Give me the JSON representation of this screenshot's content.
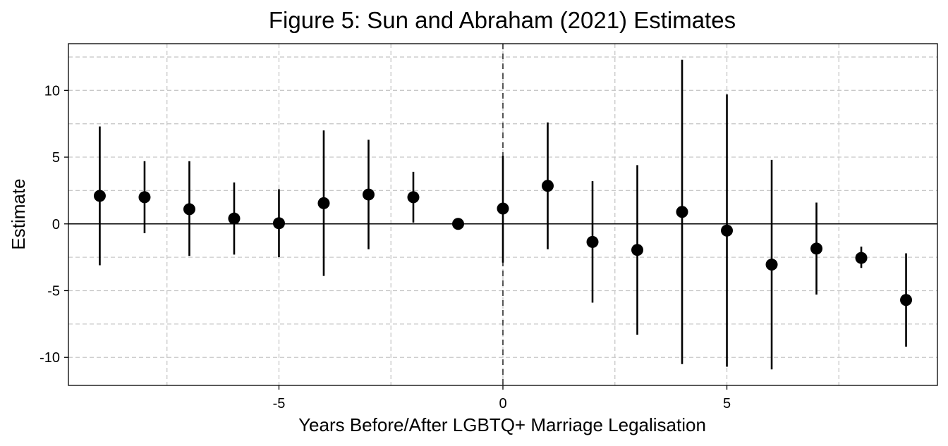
{
  "chart_data": {
    "type": "scatter",
    "title": "Figure 5: Sun and Abraham (2021) Estimates",
    "xlabel": "Years Before/After LGBTQ+ Marriage Legalisation",
    "ylabel": "Estimate",
    "xlim": [
      -9.7,
      9.7
    ],
    "ylim": [
      -12.1,
      13.5
    ],
    "x_ticks": [
      -5,
      0,
      5
    ],
    "x_tick_labels": [
      "-5",
      "0",
      "5"
    ],
    "y_ticks": [
      -10,
      -5,
      0,
      5,
      10
    ],
    "y_tick_labels": [
      "-10",
      "-5",
      "0",
      "5",
      "10"
    ],
    "x_minor_grid": [
      -7.5,
      -2.5,
      2.5,
      7.5
    ],
    "y_minor_grid": [
      -7.5,
      -2.5,
      2.5,
      7.5,
      12.5
    ],
    "grid": true,
    "zero_line": true,
    "reference_vline_x": 0,
    "points": [
      {
        "x": -9,
        "y": 2.1,
        "lo": -3.1,
        "hi": 7.3
      },
      {
        "x": -8,
        "y": 2.0,
        "lo": -0.7,
        "hi": 4.7
      },
      {
        "x": -7,
        "y": 1.1,
        "lo": -2.4,
        "hi": 4.7
      },
      {
        "x": -6,
        "y": 0.4,
        "lo": -2.3,
        "hi": 3.1
      },
      {
        "x": -5,
        "y": 0.05,
        "lo": -2.5,
        "hi": 2.6
      },
      {
        "x": -4,
        "y": 1.55,
        "lo": -3.9,
        "hi": 7.0
      },
      {
        "x": -3,
        "y": 2.2,
        "lo": -1.9,
        "hi": 6.3
      },
      {
        "x": -2,
        "y": 2.0,
        "lo": 0.1,
        "hi": 3.9
      },
      {
        "x": -1,
        "y": 0.0,
        "lo": 0.0,
        "hi": 0.0
      },
      {
        "x": 0,
        "y": 1.15,
        "lo": -2.9,
        "hi": 5.1
      },
      {
        "x": 1,
        "y": 2.85,
        "lo": -1.9,
        "hi": 7.6
      },
      {
        "x": 2,
        "y": -1.35,
        "lo": -5.9,
        "hi": 3.2
      },
      {
        "x": 3,
        "y": -1.95,
        "lo": -8.3,
        "hi": 4.4
      },
      {
        "x": 4,
        "y": 0.9,
        "lo": -10.5,
        "hi": 12.3
      },
      {
        "x": 5,
        "y": -0.5,
        "lo": -10.7,
        "hi": 9.7
      },
      {
        "x": 6,
        "y": -3.05,
        "lo": -10.9,
        "hi": 4.8
      },
      {
        "x": 7,
        "y": -1.85,
        "lo": -5.3,
        "hi": 1.6
      },
      {
        "x": 8,
        "y": -2.55,
        "lo": -3.3,
        "hi": -1.7
      },
      {
        "x": 9,
        "y": -5.7,
        "lo": -9.2,
        "hi": -2.2
      }
    ]
  }
}
